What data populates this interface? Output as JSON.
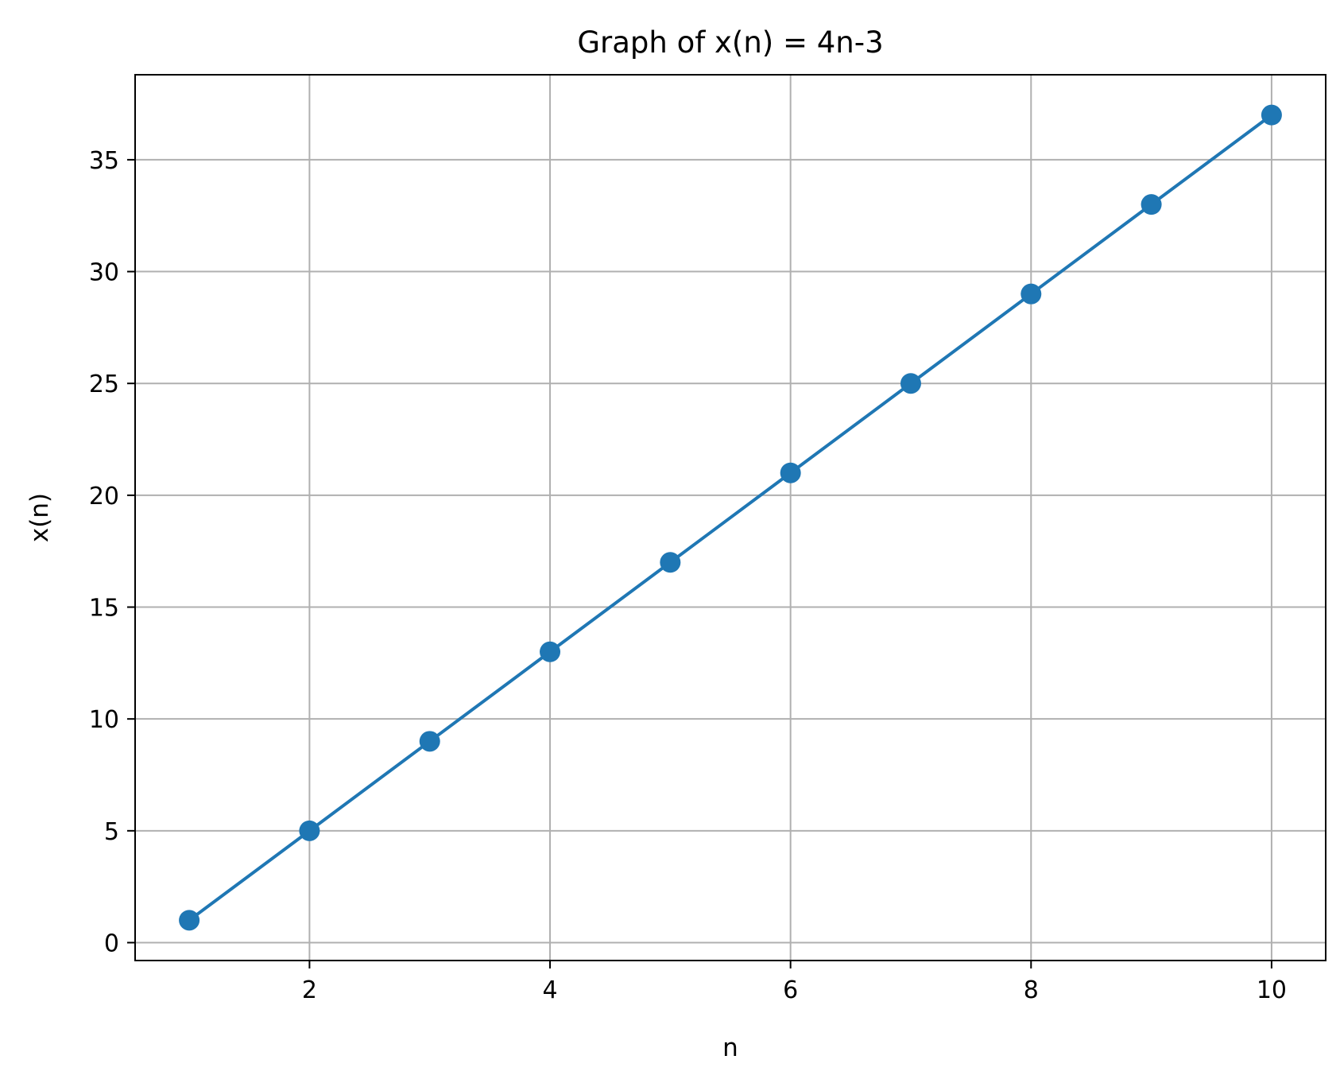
{
  "chart_data": {
    "type": "line",
    "title": "Graph of x(n) = 4n-3",
    "xlabel": "n",
    "ylabel": "x(n)",
    "x": [
      1,
      2,
      3,
      4,
      5,
      6,
      7,
      8,
      9,
      10
    ],
    "series": [
      {
        "values": [
          1,
          5,
          9,
          13,
          17,
          21,
          25,
          29,
          33,
          37
        ],
        "color": "#1f77b4",
        "marker": "circle"
      }
    ],
    "xlim": [
      0.55,
      10.45
    ],
    "ylim": [
      -0.8,
      38.8
    ],
    "xticks": [
      2,
      4,
      6,
      8,
      10
    ],
    "yticks": [
      0,
      5,
      10,
      15,
      20,
      25,
      30,
      35
    ],
    "grid": true,
    "legend": false
  }
}
